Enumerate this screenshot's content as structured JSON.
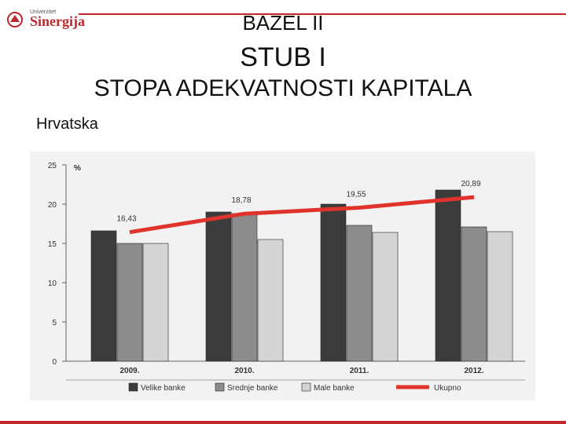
{
  "logo": {
    "small_text": "Univerzitet",
    "main_text": "Sinergija"
  },
  "titles": {
    "line1": "BAZEL II",
    "line2": "STUB I",
    "line3": "STOPA ADEKVATNOSTI KAPITALA",
    "subtitle": "Hrvatska"
  },
  "colors": {
    "accent": "#c0282d",
    "velike": "#3c3c3c",
    "srednje": "#8c8c8c",
    "male": "#d4d4d4",
    "ukupno": "#e0332c"
  },
  "chart_data": {
    "type": "bar",
    "unit_label": "%",
    "categories": [
      "2009.",
      "2010.",
      "2011.",
      "2012."
    ],
    "ylim": [
      0,
      25
    ],
    "yticks": [
      0,
      5,
      10,
      15,
      20,
      25
    ],
    "series": [
      {
        "name": "Velike banke",
        "values": [
          16.6,
          19.0,
          20.0,
          21.8
        ]
      },
      {
        "name": "Srednje banke",
        "values": [
          15.0,
          18.8,
          17.3,
          17.1
        ]
      },
      {
        "name": "Male banke",
        "values": [
          15.0,
          15.5,
          16.4,
          16.5
        ]
      }
    ],
    "line_series": {
      "name": "Ukupno",
      "values": [
        16.43,
        18.78,
        19.55,
        20.89
      ],
      "labels": [
        "16,43",
        "18,78",
        "19,55",
        "20,89"
      ]
    },
    "legend_position": "bottom",
    "grid": false
  }
}
